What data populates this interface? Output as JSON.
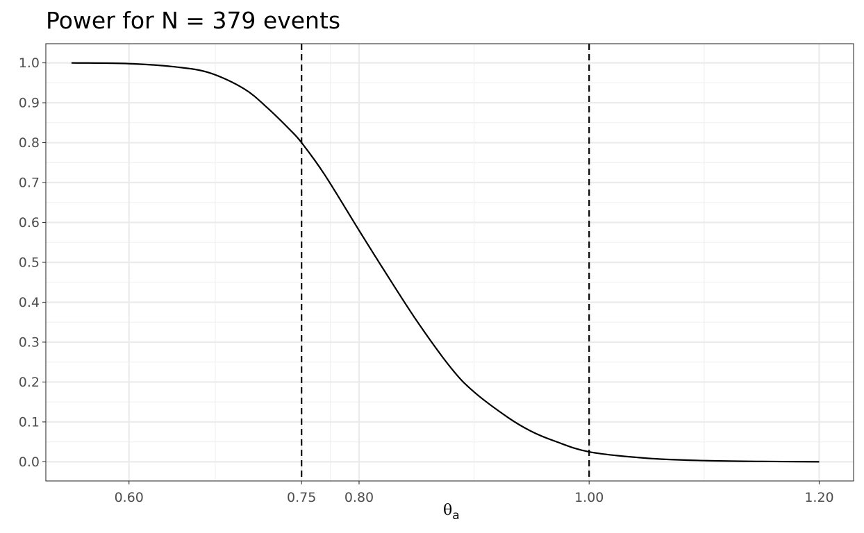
{
  "chart_data": {
    "type": "line",
    "title": "Power for N = 379 events",
    "xlabel": "θ",
    "xlabel_subscript": "a",
    "ylabel": "",
    "xlim": [
      0.5277,
      1.2299
    ],
    "ylim": [
      -0.048,
      1.048
    ],
    "x_ticks": [
      0.6,
      0.75,
      0.8,
      1.0,
      1.2
    ],
    "x_tick_labels": [
      "0.60",
      "0.75",
      "0.80",
      "1.00",
      "1.20"
    ],
    "x_minor_gridlines": [
      0.675,
      0.775,
      0.9,
      1.1
    ],
    "y_ticks": [
      0.0,
      0.1,
      0.2,
      0.3,
      0.4,
      0.5,
      0.6,
      0.7,
      0.8,
      0.9,
      1.0
    ],
    "y_tick_labels": [
      "0.0",
      "0.1",
      "0.2",
      "0.3",
      "0.4",
      "0.5",
      "0.6",
      "0.7",
      "0.8",
      "0.9",
      "1.0"
    ],
    "grid": true,
    "vlines": [
      {
        "x": 0.75,
        "style": "dashed",
        "color": "#000000"
      },
      {
        "x": 1.0,
        "style": "dashed",
        "color": "#000000"
      }
    ],
    "series": [
      {
        "color": "#000000",
        "x": [
          0.55,
          0.6,
          0.64,
          0.67,
          0.7,
          0.72,
          0.74,
          0.75,
          0.77,
          0.8,
          0.82,
          0.85,
          0.88,
          0.9,
          0.93,
          0.95,
          0.97,
          1.0,
          1.05,
          1.1,
          1.15,
          1.2
        ],
        "y": [
          1.0,
          0.998,
          0.99,
          0.975,
          0.935,
          0.888,
          0.832,
          0.8,
          0.72,
          0.58,
          0.488,
          0.354,
          0.235,
          0.175,
          0.11,
          0.076,
          0.052,
          0.025,
          0.009,
          0.003,
          0.001,
          0.0
        ]
      }
    ]
  }
}
